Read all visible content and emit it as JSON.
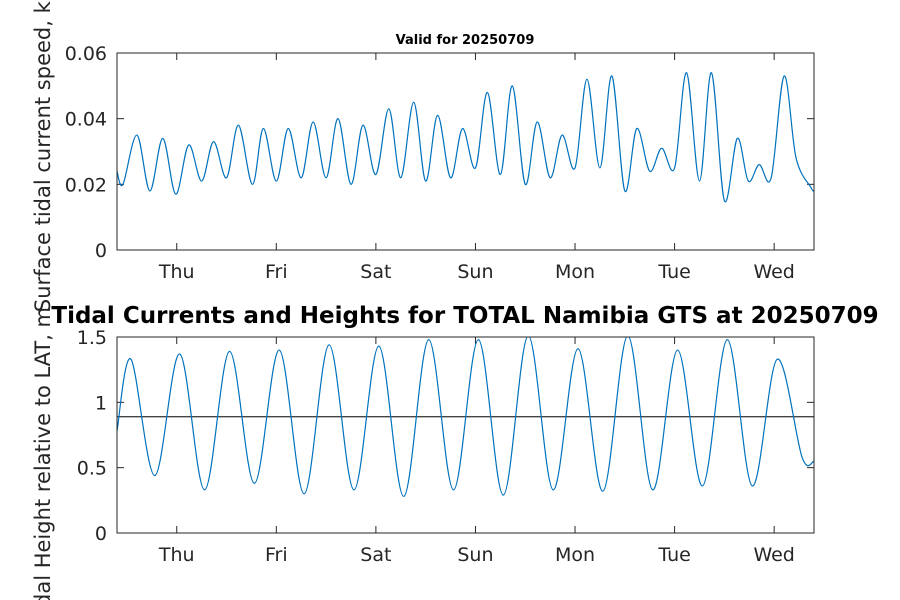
{
  "chart_data": [
    {
      "type": "line",
      "title": "Valid for 20250709",
      "ylabel": "Surface tidal current speed, kn",
      "ylim": [
        0,
        0.06
      ],
      "yticks": [
        "0",
        "0.02",
        "0.04",
        "0.06"
      ],
      "xticks": [
        "Thu",
        "Fri",
        "Sat",
        "Sun",
        "Mon",
        "Tue",
        "Wed"
      ],
      "xlim_days": [
        0,
        7
      ],
      "series": [
        {
          "color": "#0072BD",
          "x": [
            0,
            0.06,
            0.2,
            0.33,
            0.46,
            0.59,
            0.72,
            0.85,
            0.97,
            1.1,
            1.22,
            1.36,
            1.47,
            1.6,
            1.72,
            1.85,
            1.97,
            2.1,
            2.22,
            2.35,
            2.47,
            2.6,
            2.73,
            2.85,
            2.98,
            3.1,
            3.22,
            3.35,
            3.47,
            3.6,
            3.72,
            3.85,
            3.97,
            4.1,
            4.22,
            4.35,
            4.47,
            4.6,
            4.72,
            4.85,
            4.97,
            5.1,
            5.22,
            5.35,
            5.47,
            5.6,
            5.72,
            5.85,
            5.97,
            6.1,
            6.23,
            6.34,
            6.45,
            6.57,
            6.7,
            6.82,
            6.97,
            7
          ],
          "values": [
            0.024,
            0.02,
            0.035,
            0.018,
            0.034,
            0.017,
            0.032,
            0.021,
            0.033,
            0.022,
            0.038,
            0.02,
            0.037,
            0.021,
            0.037,
            0.022,
            0.039,
            0.022,
            0.04,
            0.02,
            0.038,
            0.023,
            0.043,
            0.022,
            0.045,
            0.021,
            0.041,
            0.022,
            0.037,
            0.025,
            0.048,
            0.023,
            0.05,
            0.02,
            0.039,
            0.022,
            0.035,
            0.025,
            0.052,
            0.025,
            0.053,
            0.018,
            0.037,
            0.024,
            0.031,
            0.025,
            0.054,
            0.021,
            0.054,
            0.015,
            0.034,
            0.021,
            0.026,
            0.022,
            0.053,
            0.028,
            0.019,
            0.018
          ]
        }
      ]
    },
    {
      "type": "line",
      "title": "Tidal Currents and Heights for TOTAL Namibia GTS at 20250709",
      "ylabel": "Tidal Height relative to LAT, m",
      "ylim": [
        0,
        1.5
      ],
      "yticks": [
        "0",
        "0.5",
        "1",
        "1.5"
      ],
      "xticks": [
        "Thu",
        "Fri",
        "Sat",
        "Sun",
        "Mon",
        "Tue",
        "Wed"
      ],
      "xlim_days": [
        0,
        7
      ],
      "reference_line": {
        "value": 0.89,
        "color": "#444444"
      },
      "series": [
        {
          "color": "#0072BD",
          "x": [
            0,
            0.14,
            0.38,
            0.63,
            0.88,
            1.13,
            1.38,
            1.63,
            1.88,
            2.13,
            2.38,
            2.63,
            2.88,
            3.13,
            3.38,
            3.63,
            3.88,
            4.13,
            4.38,
            4.63,
            4.88,
            5.13,
            5.38,
            5.63,
            5.88,
            6.13,
            6.38,
            6.63,
            6.88,
            7
          ],
          "values": [
            0.78,
            1.33,
            0.44,
            1.37,
            0.33,
            1.39,
            0.38,
            1.4,
            0.3,
            1.44,
            0.33,
            1.43,
            0.28,
            1.48,
            0.33,
            1.48,
            0.29,
            1.51,
            0.33,
            1.41,
            0.32,
            1.51,
            0.33,
            1.4,
            0.36,
            1.48,
            0.36,
            1.33,
            0.58,
            0.55
          ]
        }
      ]
    }
  ]
}
